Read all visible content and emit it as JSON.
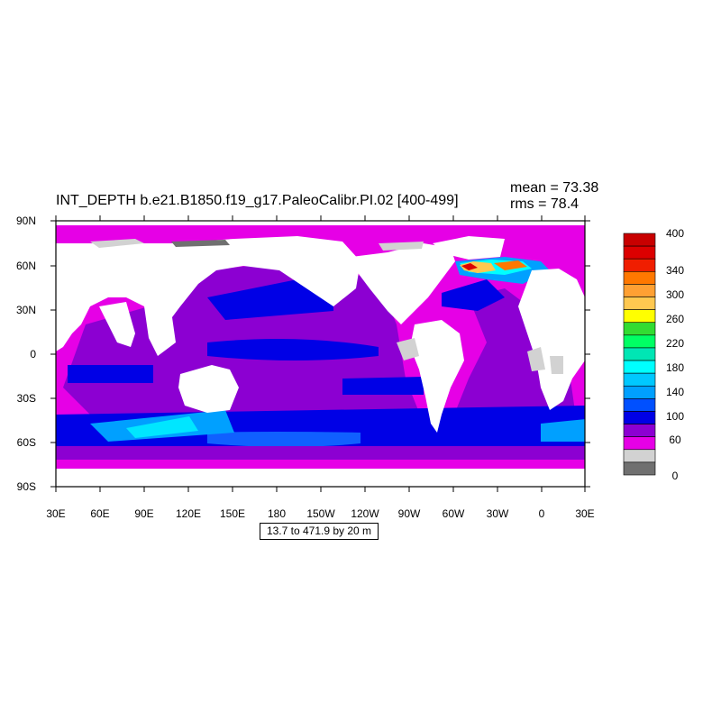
{
  "title": "INT_DEPTH b.e21.B1850.f19_g17.PaleoCalibr.PI.02 [400-499]",
  "stats": {
    "mean": "mean = 73.38",
    "rms": "rms = 78.4"
  },
  "lat_labels": [
    "90N",
    "60N",
    "30N",
    "0",
    "30S",
    "60S",
    "90S"
  ],
  "lon_labels": [
    "30E",
    "60E",
    "90E",
    "120E",
    "150E",
    "180",
    "150W",
    "120W",
    "90W",
    "60W",
    "30W",
    "0",
    "30E"
  ],
  "colorbar": {
    "labels": [
      "400",
      "340",
      "300",
      "260",
      "220",
      "180",
      "140",
      "100",
      "60",
      "0"
    ],
    "colors_top_to_bottom": [
      "#c80000",
      "#dc0000",
      "#f01e00",
      "#ff7800",
      "#ffa033",
      "#ffc850",
      "#ffff00",
      "#32dc32",
      "#00ff64",
      "#00e6b4",
      "#00ffff",
      "#00c8ff",
      "#00a0ff",
      "#0050ff",
      "#0000e6",
      "#8c00d2",
      "#e600e6",
      "#d2d2d2",
      "#707070"
    ]
  },
  "info_text": "13.7 to 471.9 by 20 m",
  "colors": {
    "land": "#ffffff",
    "ice": "#d2d2d2",
    "shallow": "#e600e6",
    "mid": "#8c00d2",
    "deep": "#0000e6"
  }
}
